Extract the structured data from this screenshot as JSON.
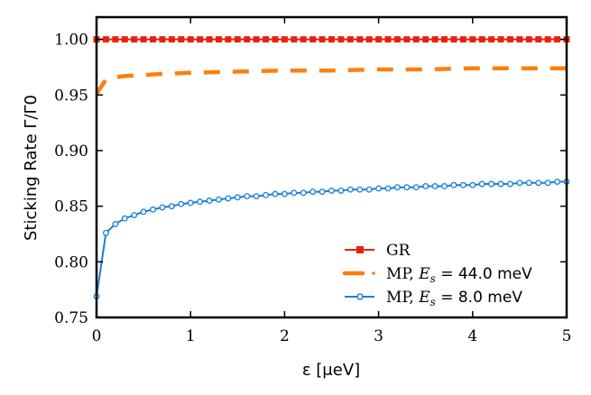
{
  "chart_data": {
    "type": "line",
    "title": "",
    "xlabel": "ε  [μeV]",
    "ylabel": "Sticking Rate Γ/Γ0",
    "xlim": [
      0,
      5
    ],
    "ylim": [
      0.75,
      1.02
    ],
    "grid": false,
    "legend_position": "bottom-right",
    "x_ticks": [
      "0",
      "1",
      "2",
      "3",
      "4",
      "5"
    ],
    "y_ticks": [
      "0.75",
      "0.80",
      "0.85",
      "0.90",
      "0.95",
      "1.00"
    ],
    "x": [
      0,
      0.1,
      0.2,
      0.3,
      0.4,
      0.5,
      0.6,
      0.7,
      0.8,
      0.9,
      1.0,
      1.1,
      1.2,
      1.3,
      1.4,
      1.5,
      1.6,
      1.7,
      1.8,
      1.9,
      2.0,
      2.1,
      2.2,
      2.3,
      2.4,
      2.5,
      2.6,
      2.7,
      2.8,
      2.9,
      3.0,
      3.1,
      3.2,
      3.3,
      3.4,
      3.5,
      3.6,
      3.7,
      3.8,
      3.9,
      4.0,
      4.1,
      4.2,
      4.3,
      4.4,
      4.5,
      4.6,
      4.7,
      4.8,
      4.9,
      5.0
    ],
    "series": [
      {
        "name": "GR",
        "color": "#e8210e",
        "style": "solid-square",
        "values": [
          1,
          1,
          1,
          1,
          1,
          1,
          1,
          1,
          1,
          1,
          1,
          1,
          1,
          1,
          1,
          1,
          1,
          1,
          1,
          1,
          1,
          1,
          1,
          1,
          1,
          1,
          1,
          1,
          1,
          1,
          1,
          1,
          1,
          1,
          1,
          1,
          1,
          1,
          1,
          1,
          1,
          1,
          1,
          1,
          1,
          1,
          1,
          1,
          1,
          1,
          1
        ]
      },
      {
        "name": "MP, Es = 44.0 meV",
        "color": "#ff7f0e",
        "style": "dashed",
        "x": [
          0,
          0.1,
          0.2,
          0.3,
          0.5,
          0.7,
          1,
          1.5,
          2,
          2.5,
          3,
          3.5,
          4,
          4.5,
          5
        ],
        "values": [
          0.951,
          0.964,
          0.966,
          0.967,
          0.968,
          0.969,
          0.97,
          0.971,
          0.972,
          0.972,
          0.973,
          0.973,
          0.974,
          0.974,
          0.974
        ]
      },
      {
        "name": "MP, Es = 8.0 meV",
        "color": "#1a7fd8",
        "style": "solid-circle",
        "values": [
          0.769,
          0.826,
          0.834,
          0.839,
          0.842,
          0.845,
          0.847,
          0.849,
          0.85,
          0.852,
          0.853,
          0.854,
          0.855,
          0.856,
          0.857,
          0.858,
          0.859,
          0.859,
          0.86,
          0.861,
          0.861,
          0.862,
          0.862,
          0.863,
          0.863,
          0.864,
          0.864,
          0.865,
          0.865,
          0.865,
          0.866,
          0.866,
          0.867,
          0.867,
          0.867,
          0.868,
          0.868,
          0.868,
          0.869,
          0.869,
          0.869,
          0.87,
          0.87,
          0.87,
          0.87,
          0.871,
          0.871,
          0.871,
          0.871,
          0.872,
          0.872
        ]
      }
    ],
    "legend": [
      {
        "label": "GR"
      },
      {
        "label_prefix": "MP, ",
        "label_var": "E",
        "label_sub": "s",
        "label_suffix": " = 44.0 meV"
      },
      {
        "label_prefix": "MP, ",
        "label_var": "E",
        "label_sub": "s",
        "label_suffix": " = 8.0 meV"
      }
    ]
  }
}
